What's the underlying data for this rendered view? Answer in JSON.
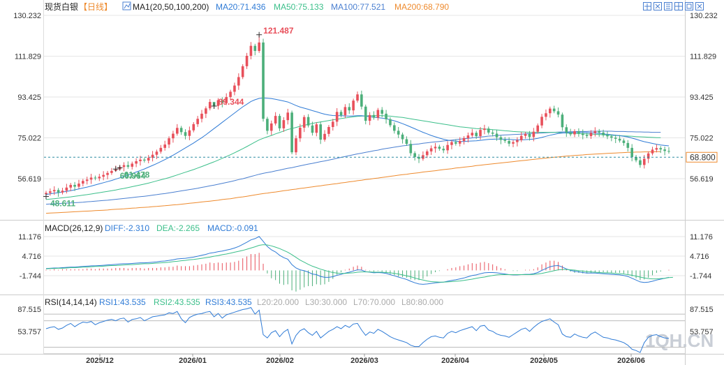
{
  "header": {
    "symbol": "现货白银",
    "period": "【日线】",
    "ma_title": "MA1(20,50,100,200)",
    "ma20": "MA20:71.436",
    "ma50": "MA50:75.133",
    "ma100": "MA100:77.521",
    "ma200": "MA200:68.790"
  },
  "macd_legend": {
    "title": "MACD(26,12,9)",
    "diff": "DIFF:-2.310",
    "dea": "DEA:-2.265",
    "macd": "MACD:-0.091"
  },
  "rsi_legend": {
    "title": "RSI(14,14,14)",
    "rsi1": "RSI1:43.535",
    "rsi2": "RSI2:43.535",
    "rsi3": "RSI3:43.535",
    "l20": "L20:20.000",
    "l30": "L30:30.000",
    "l70": "L70:70.000",
    "l80": "L80:80.000"
  },
  "watermark": "1QH.CN",
  "icons": [
    "crosshair-icon",
    "expand-icon",
    "settings-icon",
    "grid-icon",
    "fullscreen-icon",
    "close-icon"
  ],
  "colors": {
    "up": "#e8505b",
    "down": "#4caf7a",
    "ma20": "#2f7bd6",
    "ma50": "#3bbf8a",
    "ma100": "#4a7fd0",
    "ma200": "#ee8a2d",
    "last_price": "#ee8a2d",
    "grid": "#e6e6e6"
  },
  "chart_data": [
    {
      "type": "candlestick",
      "name": "main",
      "yticks": [
        "130.232",
        "111.829",
        "93.425",
        "75.022",
        "56.619"
      ],
      "ylim": [
        42,
        130.232
      ],
      "xticks": [
        "2025/12",
        "2026/01",
        "2026/02",
        "2026/03",
        "2026/04",
        "2026/05",
        "2026/06"
      ],
      "last_price": "68.800",
      "annotations": [
        {
          "text": "121.487",
          "value": 121.487,
          "kind": "high"
        },
        {
          "text": "89.344",
          "value": 89.344,
          "kind": "high"
        },
        {
          "text": "48.611",
          "value": 48.611,
          "kind": "low"
        },
        {
          "text": "60.964",
          "value": 60.964,
          "kind": "low"
        },
        {
          "text": "61.478",
          "value": 61.478,
          "kind": "low"
        }
      ],
      "close": [
        50.2,
        50.9,
        51.5,
        50.4,
        51.2,
        52.6,
        53.8,
        53.0,
        54.4,
        55.6,
        56.2,
        57.1,
        56.8,
        57.5,
        58.3,
        59.2,
        60.1,
        60.8,
        61.9,
        62.7,
        62.0,
        63.4,
        64.5,
        65.2,
        64.8,
        66.0,
        67.4,
        68.8,
        70.5,
        72.0,
        74.8,
        76.9,
        79.5,
        77.6,
        75.9,
        78.4,
        81.2,
        83.6,
        85.9,
        88.3,
        91.2,
        89.4,
        92.0,
        90.7,
        93.4,
        95.8,
        98.6,
        102.4,
        107.3,
        112.0,
        116.5,
        114.2,
        118.0,
        83.6,
        78.2,
        81.5,
        84.9,
        79.3,
        83.0,
        86.4,
        68.5,
        74.8,
        79.6,
        84.4,
        80.6,
        77.3,
        81.1,
        74.2,
        76.8,
        79.9,
        82.3,
        86.7,
        85.2,
        88.9,
        87.4,
        91.8,
        94.6,
        89.1,
        82.7,
        85.3,
        84.1,
        87.6,
        85.9,
        83.4,
        80.7,
        78.2,
        76.5,
        74.4,
        72.3,
        68.1,
        66.4,
        65.6,
        67.2,
        68.9,
        70.3,
        71.0,
        70.1,
        69.4,
        71.8,
        73.1,
        72.4,
        73.6,
        74.9,
        76.1,
        77.3,
        75.8,
        78.6,
        79.2,
        77.4,
        76.9,
        75.3,
        74.1,
        73.6,
        72.4,
        73.1,
        74.0,
        75.9,
        76.8,
        75.4,
        77.8,
        80.6,
        84.5,
        86.1,
        88.2,
        87.0,
        85.5,
        79.8,
        77.4,
        76.6,
        78.0,
        77.1,
        76.3,
        75.8,
        77.2,
        78.1,
        77.4,
        76.2,
        75.7,
        75.1,
        74.6,
        73.8,
        72.7,
        70.5,
        66.4,
        64.9,
        62.8,
        65.6,
        68.0,
        69.7,
        70.4,
        69.8,
        69.1,
        68.8
      ],
      "ma20": [
        49.5,
        49.8,
        50.1,
        50.3,
        50.6,
        50.9,
        51.2,
        51.6,
        52.0,
        52.4,
        52.8,
        53.3,
        53.8,
        54.3,
        54.8,
        55.3,
        55.8,
        56.4,
        57.0,
        57.6,
        58.2,
        58.9,
        59.6,
        60.3,
        61.0,
        61.8,
        62.6,
        63.4,
        64.3,
        65.2,
        66.2,
        67.2,
        68.3,
        69.4,
        70.5,
        71.6,
        72.7,
        73.9,
        75.1,
        76.4,
        77.8,
        79.2,
        80.6,
        82.0,
        83.4,
        84.8,
        86.2,
        87.6,
        89.0,
        90.2,
        91.4,
        92.2,
        92.8,
        93.0,
        92.9,
        92.7,
        92.4,
        92.0,
        91.6,
        91.2,
        90.4,
        89.6,
        88.9,
        88.4,
        87.9,
        87.3,
        86.8,
        86.2,
        85.7,
        85.3,
        85.1,
        85.0,
        85.0,
        84.9,
        84.8,
        84.9,
        85.0,
        85.0,
        84.8,
        84.6,
        84.3,
        84.1,
        83.9,
        83.6,
        83.2,
        82.7,
        82.1,
        81.4,
        80.7,
        79.9,
        79.1,
        78.3,
        77.5,
        76.8,
        76.1,
        75.5,
        74.9,
        74.4,
        74.0,
        73.7,
        73.5,
        73.4,
        73.4,
        73.5,
        73.6,
        73.7,
        73.9,
        74.1,
        74.3,
        74.4,
        74.5,
        74.5,
        74.4,
        74.3,
        74.2,
        74.1,
        74.1,
        74.2,
        74.3,
        74.5,
        74.8,
        75.2,
        75.7,
        76.2,
        76.6,
        77.0,
        77.2,
        77.3,
        77.4,
        77.5,
        77.5,
        77.5,
        77.4,
        77.3,
        77.2,
        77.0,
        76.8,
        76.6,
        76.4,
        76.2,
        76.0,
        75.7,
        75.4,
        74.9,
        74.4,
        73.8,
        73.3,
        72.9,
        72.5,
        72.1,
        71.8,
        71.6,
        71.4
      ],
      "ma50": [
        47.2,
        47.4,
        47.6,
        47.8,
        48.0,
        48.2,
        48.4,
        48.7,
        48.9,
        49.2,
        49.4,
        49.7,
        50.0,
        50.3,
        50.6,
        50.9,
        51.2,
        51.5,
        51.9,
        52.2,
        52.6,
        53.0,
        53.4,
        53.8,
        54.2,
        54.6,
        55.1,
        55.6,
        56.1,
        56.6,
        57.1,
        57.7,
        58.3,
        58.9,
        59.5,
        60.1,
        60.7,
        61.4,
        62.1,
        62.8,
        63.5,
        64.2,
        65.0,
        65.8,
        66.6,
        67.4,
        68.3,
        69.2,
        70.1,
        71.1,
        72.1,
        73.1,
        74.1,
        74.8,
        75.5,
        76.1,
        76.8,
        77.4,
        78.1,
        78.8,
        79.2,
        79.7,
        80.2,
        80.7,
        81.1,
        81.5,
        81.9,
        82.2,
        82.5,
        82.8,
        83.1,
        83.4,
        83.7,
        84.0,
        84.2,
        84.5,
        84.7,
        84.8,
        84.9,
        85.0,
        85.0,
        85.0,
        85.0,
        84.9,
        84.8,
        84.6,
        84.4,
        84.2,
        83.9,
        83.6,
        83.3,
        83.0,
        82.7,
        82.4,
        82.1,
        81.8,
        81.5,
        81.2,
        80.9,
        80.6,
        80.3,
        80.0,
        79.8,
        79.6,
        79.4,
        79.2,
        79.1,
        79.0,
        78.9,
        78.7,
        78.6,
        78.4,
        78.2,
        78.1,
        77.9,
        77.8,
        77.7,
        77.6,
        77.5,
        77.5,
        77.5,
        77.5,
        77.5,
        77.5,
        77.5,
        77.4,
        77.3,
        77.2,
        77.1,
        77.0,
        76.9,
        76.8,
        76.8,
        76.7,
        76.6,
        76.5,
        76.4,
        76.3,
        76.2,
        76.1,
        76.0,
        75.9,
        75.8,
        75.7,
        75.6,
        75.5,
        75.4,
        75.3,
        75.2,
        75.1,
        75.1
      ],
      "ma100": [
        45.1,
        45.2,
        45.3,
        45.4,
        45.5,
        45.6,
        45.7,
        45.8,
        45.9,
        46.0,
        46.2,
        46.3,
        46.5,
        46.6,
        46.8,
        46.9,
        47.1,
        47.3,
        47.5,
        47.7,
        47.9,
        48.1,
        48.3,
        48.5,
        48.7,
        48.9,
        49.2,
        49.4,
        49.7,
        49.9,
        50.2,
        50.5,
        50.8,
        51.1,
        51.4,
        51.7,
        52.0,
        52.3,
        52.7,
        53.0,
        53.4,
        53.7,
        54.1,
        54.5,
        54.9,
        55.3,
        55.7,
        56.2,
        56.6,
        57.1,
        57.6,
        58.1,
        58.6,
        59.0,
        59.4,
        59.7,
        60.1,
        60.5,
        60.9,
        61.3,
        61.6,
        62.0,
        62.4,
        62.8,
        63.2,
        63.5,
        63.9,
        64.3,
        64.6,
        65.0,
        65.4,
        65.8,
        66.2,
        66.6,
        67.0,
        67.4,
        67.8,
        68.1,
        68.5,
        68.8,
        69.2,
        69.5,
        69.9,
        70.2,
        70.5,
        70.8,
        71.1,
        71.4,
        71.6,
        71.9,
        72.1,
        72.3,
        72.6,
        72.8,
        73.0,
        73.2,
        73.4,
        73.6,
        73.8,
        74.0,
        74.2,
        74.4,
        74.6,
        74.8,
        75.0,
        75.2,
        75.4,
        75.6,
        75.8,
        75.9,
        76.1,
        76.2,
        76.3,
        76.4,
        76.5,
        76.6,
        76.7,
        76.8,
        76.9,
        77.0,
        77.1,
        77.2,
        77.3,
        77.4,
        77.5,
        77.6,
        77.7,
        77.7,
        77.8,
        77.8,
        77.9,
        77.9,
        77.9,
        78.0,
        78.0,
        78.0,
        78.0,
        78.0,
        78.0,
        77.9,
        77.9,
        77.9,
        77.8,
        77.8,
        77.7,
        77.7,
        77.6,
        77.6,
        77.5,
        77.5,
        77.5
      ],
      "ma200": [
        41.0,
        41.1,
        41.2,
        41.3,
        41.4,
        41.5,
        41.6,
        41.7,
        41.8,
        41.9,
        42.0,
        42.1,
        42.2,
        42.3,
        42.4,
        42.5,
        42.7,
        42.8,
        42.9,
        43.0,
        43.2,
        43.3,
        43.4,
        43.6,
        43.7,
        43.8,
        44.0,
        44.1,
        44.3,
        44.4,
        44.6,
        44.8,
        44.9,
        45.1,
        45.3,
        45.5,
        45.7,
        45.9,
        46.1,
        46.3,
        46.5,
        46.7,
        46.9,
        47.2,
        47.4,
        47.6,
        47.9,
        48.2,
        48.4,
        48.7,
        49.0,
        49.3,
        49.6,
        49.9,
        50.1,
        50.4,
        50.6,
        50.9,
        51.2,
        51.4,
        51.7,
        51.9,
        52.2,
        52.4,
        52.7,
        52.9,
        53.2,
        53.4,
        53.7,
        53.9,
        54.2,
        54.4,
        54.7,
        54.9,
        55.2,
        55.4,
        55.7,
        55.9,
        56.2,
        56.4,
        56.7,
        56.9,
        57.2,
        57.4,
        57.7,
        57.9,
        58.2,
        58.4,
        58.6,
        58.9,
        59.1,
        59.3,
        59.6,
        59.8,
        60.0,
        60.2,
        60.5,
        60.7,
        60.9,
        61.1,
        61.4,
        61.6,
        61.8,
        62.0,
        62.2,
        62.5,
        62.7,
        62.9,
        63.1,
        63.3,
        63.5,
        63.7,
        63.9,
        64.1,
        64.3,
        64.5,
        64.7,
        64.9,
        65.1,
        65.3,
        65.5,
        65.7,
        65.9,
        66.1,
        66.3,
        66.4,
        66.6,
        66.8,
        66.9,
        67.1,
        67.2,
        67.3,
        67.5,
        67.6,
        67.7,
        67.8,
        67.9,
        68.0,
        68.1,
        68.2,
        68.3,
        68.4,
        68.5,
        68.5,
        68.6,
        68.6,
        68.7,
        68.7,
        68.7,
        68.8,
        68.8
      ]
    },
    {
      "type": "macd",
      "name": "macd",
      "yticks": [
        "11.176",
        "4.716",
        "-1.744"
      ],
      "ylim": [
        -10,
        14
      ],
      "diff": [
        0.6,
        0.7,
        0.8,
        0.8,
        0.9,
        1.0,
        1.1,
        1.1,
        1.2,
        1.3,
        1.4,
        1.5,
        1.5,
        1.6,
        1.7,
        1.8,
        1.9,
        2.0,
        2.1,
        2.2,
        2.2,
        2.3,
        2.4,
        2.5,
        2.5,
        2.6,
        2.7,
        2.8,
        3.0,
        3.1,
        3.3,
        3.5,
        3.8,
        3.9,
        4.0,
        4.2,
        4.4,
        4.7,
        5.0,
        5.3,
        5.7,
        5.9,
        6.2,
        6.4,
        6.7,
        7.0,
        7.4,
        7.9,
        8.6,
        9.3,
        10.1,
        10.5,
        11.2,
        9.6,
        7.9,
        6.8,
        6.1,
        5.0,
        4.2,
        3.7,
        1.9,
        0.8,
        0.2,
        -0.1,
        -0.6,
        -1.2,
        -1.4,
        -2.0,
        -2.3,
        -2.3,
        -2.1,
        -1.6,
        -1.3,
        -0.9,
        -0.6,
        -0.2,
        0.2,
        0.1,
        -0.4,
        -0.6,
        -0.8,
        -0.7,
        -0.8,
        -1.0,
        -1.4,
        -1.8,
        -2.2,
        -2.6,
        -3.0,
        -3.6,
        -4.1,
        -4.5,
        -4.6,
        -4.5,
        -4.3,
        -4.1,
        -4.0,
        -3.9,
        -3.6,
        -3.3,
        -3.1,
        -2.8,
        -2.5,
        -2.1,
        -1.7,
        -1.5,
        -1.1,
        -0.8,
        -0.7,
        -0.7,
        -0.8,
        -1.0,
        -1.2,
        -1.4,
        -1.5,
        -1.5,
        -1.4,
        -1.3,
        -1.3,
        -1.1,
        -0.7,
        0.0,
        0.6,
        1.2,
        1.5,
        1.6,
        1.1,
        0.5,
        0.0,
        -0.3,
        -0.5,
        -0.7,
        -0.9,
        -0.9,
        -0.9,
        -1.0,
        -1.1,
        -1.2,
        -1.3,
        -1.4,
        -1.5,
        -1.7,
        -2.0,
        -2.6,
        -3.2,
        -3.8,
        -4.0,
        -3.9,
        -3.6,
        -3.2,
        -2.9,
        -2.6,
        -2.3
      ],
      "dea": [
        0.5,
        0.6,
        0.6,
        0.7,
        0.7,
        0.8,
        0.9,
        0.9,
        1.0,
        1.1,
        1.1,
        1.2,
        1.3,
        1.3,
        1.4,
        1.5,
        1.6,
        1.6,
        1.7,
        1.8,
        1.9,
        1.9,
        2.0,
        2.1,
        2.2,
        2.2,
        2.3,
        2.4,
        2.5,
        2.6,
        2.7,
        2.9,
        3.0,
        3.2,
        3.3,
        3.5,
        3.6,
        3.8,
        4.0,
        4.2,
        4.4,
        4.7,
        4.9,
        5.2,
        5.4,
        5.7,
        6.0,
        6.3,
        6.6,
        7.0,
        7.4,
        7.8,
        8.3,
        8.5,
        8.4,
        8.1,
        7.7,
        7.2,
        6.6,
        6.0,
        5.2,
        4.3,
        3.4,
        2.7,
        2.0,
        1.4,
        0.9,
        0.4,
        0.0,
        -0.4,
        -0.7,
        -0.9,
        -1.0,
        -1.0,
        -0.9,
        -0.8,
        -0.6,
        -0.5,
        -0.5,
        -0.5,
        -0.6,
        -0.6,
        -0.6,
        -0.7,
        -0.8,
        -1.0,
        -1.2,
        -1.5,
        -1.8,
        -2.1,
        -2.5,
        -2.9,
        -3.2,
        -3.5,
        -3.7,
        -3.8,
        -3.9,
        -3.9,
        -3.8,
        -3.7,
        -3.6,
        -3.5,
        -3.3,
        -3.1,
        -2.9,
        -2.6,
        -2.4,
        -2.2,
        -1.9,
        -1.7,
        -1.5,
        -1.4,
        -1.4,
        -1.4,
        -1.4,
        -1.4,
        -1.4,
        -1.4,
        -1.4,
        -1.3,
        -1.2,
        -1.0,
        -0.7,
        -0.4,
        -0.1,
        0.2,
        0.3,
        0.3,
        0.2,
        0.1,
        -0.1,
        -0.2,
        -0.4,
        -0.5,
        -0.6,
        -0.7,
        -0.8,
        -0.8,
        -0.9,
        -1.0,
        -1.1,
        -1.2,
        -1.4,
        -1.6,
        -1.9,
        -2.2,
        -2.5,
        -2.7,
        -2.8,
        -2.8,
        -2.7,
        -2.6,
        -2.4,
        -2.3
      ]
    },
    {
      "type": "line",
      "name": "rsi",
      "yticks": [
        "87.515",
        "53.757"
      ],
      "ylim": [
        15,
        100
      ],
      "values": [
        58,
        60,
        61,
        57,
        59,
        63,
        66,
        61,
        65,
        68,
        67,
        69,
        64,
        67,
        69,
        71,
        72,
        70,
        73,
        74,
        68,
        72,
        73,
        75,
        70,
        73,
        76,
        77,
        78,
        79,
        82,
        81,
        84,
        73,
        67,
        75,
        78,
        80,
        81,
        83,
        84,
        76,
        81,
        74,
        79,
        81,
        83,
        85,
        87,
        88,
        90,
        80,
        86,
        49,
        44,
        52,
        55,
        46,
        53,
        57,
        35,
        48,
        55,
        58,
        52,
        48,
        54,
        44,
        49,
        54,
        57,
        61,
        58,
        63,
        60,
        65,
        66,
        56,
        48,
        53,
        51,
        57,
        54,
        50,
        46,
        43,
        41,
        39,
        37,
        33,
        31,
        31,
        37,
        42,
        46,
        47,
        45,
        44,
        51,
        54,
        52,
        55,
        57,
        59,
        61,
        55,
        62,
        63,
        56,
        54,
        50,
        48,
        47,
        45,
        49,
        53,
        57,
        59,
        54,
        60,
        65,
        69,
        71,
        73,
        68,
        64,
        50,
        46,
        45,
        50,
        47,
        45,
        44,
        50,
        53,
        49,
        45,
        44,
        42,
        41,
        39,
        37,
        33,
        27,
        25,
        22,
        37,
        45,
        48,
        49,
        46,
        44,
        43.5
      ]
    }
  ]
}
